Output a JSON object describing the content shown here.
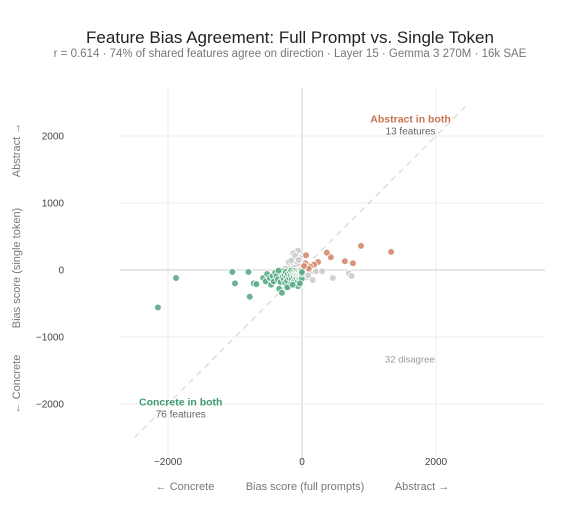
{
  "chart_data": {
    "type": "scatter",
    "title": "Feature Bias Agreement: Full Prompt vs. Single Token",
    "subtitle": "r = 0.614 · 74% of shared features agree on direction · Layer 15 · Gemma 3 270M · 16k SAE",
    "xlabel": "Bias score (full prompts)",
    "ylabel": "Bias score (single token)",
    "x_left_label": "← Concrete",
    "x_right_label": "Abstract →",
    "y_top_label": "Abstract →",
    "y_bottom_label": "← Concrete",
    "xlim": [
      -2500,
      2500
    ],
    "ylim": [
      -2500,
      2500
    ],
    "xticks": [
      -2000,
      0,
      2000
    ],
    "yticks": [
      -2000,
      -1000,
      0,
      1000,
      2000
    ],
    "tick_labels_x": [
      "−2000",
      "0",
      "2000"
    ],
    "tick_labels_y": [
      "−2000",
      "−1000",
      "0",
      "1000",
      "2000"
    ],
    "grid": true,
    "colors": {
      "abstract": "#d4896a",
      "concrete": "#5aab86",
      "disagree": "#cccccc",
      "abstract_text": "#c8724f",
      "concrete_text": "#3f9a70"
    },
    "annotations": {
      "abstract_title": "Abstract in both",
      "abstract_count": "13 features",
      "concrete_title": "Concrete in both",
      "concrete_count": "76 features",
      "disagree": "32 disagree"
    },
    "series": [
      {
        "key": "abstract",
        "points": [
          [
            1330,
            270
          ],
          [
            880,
            360
          ],
          [
            760,
            100
          ],
          [
            640,
            130
          ],
          [
            430,
            190
          ],
          [
            370,
            260
          ],
          [
            240,
            120
          ],
          [
            180,
            80
          ],
          [
            120,
            50
          ],
          [
            60,
            220
          ],
          [
            50,
            100
          ],
          [
            100,
            20
          ],
          [
            30,
            60
          ]
        ]
      },
      {
        "key": "concrete",
        "points": [
          [
            -2150,
            -560
          ],
          [
            -1880,
            -120
          ],
          [
            -1040,
            -30
          ],
          [
            -1000,
            -200
          ],
          [
            -800,
            -30
          ],
          [
            -780,
            -400
          ],
          [
            -720,
            -200
          ],
          [
            -680,
            -210
          ],
          [
            -580,
            -120
          ],
          [
            -540,
            -170
          ],
          [
            -520,
            -60
          ],
          [
            -480,
            -120
          ],
          [
            -460,
            -220
          ],
          [
            -440,
            -90
          ],
          [
            -420,
            -170
          ],
          [
            -400,
            -40
          ],
          [
            -380,
            -90
          ],
          [
            -360,
            -140
          ],
          [
            -340,
            -280
          ],
          [
            -320,
            -180
          ],
          [
            -300,
            -60
          ],
          [
            -290,
            -110
          ],
          [
            -280,
            -20
          ],
          [
            -270,
            -140
          ],
          [
            -260,
            -70
          ],
          [
            -250,
            -190
          ],
          [
            -240,
            -30
          ],
          [
            -230,
            -100
          ],
          [
            -220,
            -160
          ],
          [
            -210,
            -60
          ],
          [
            -200,
            -250
          ],
          [
            -190,
            -120
          ],
          [
            -180,
            -40
          ],
          [
            -170,
            -80
          ],
          [
            -160,
            -10
          ],
          [
            -160,
            -200
          ],
          [
            -150,
            -130
          ],
          [
            -140,
            -60
          ],
          [
            -130,
            -30
          ],
          [
            -120,
            -170
          ],
          [
            -120,
            -100
          ],
          [
            -110,
            -50
          ],
          [
            -100,
            -10
          ],
          [
            -100,
            -140
          ],
          [
            -90,
            -80
          ],
          [
            -85,
            -30
          ],
          [
            -80,
            -120
          ],
          [
            -75,
            -60
          ],
          [
            -70,
            -15
          ],
          [
            -65,
            -180
          ],
          [
            -60,
            -90
          ],
          [
            -55,
            -40
          ],
          [
            -50,
            -110
          ],
          [
            -45,
            -20
          ],
          [
            -40,
            -70
          ],
          [
            -35,
            -130
          ],
          [
            -30,
            -50
          ],
          [
            -25,
            -10
          ],
          [
            -20,
            -90
          ],
          [
            -18,
            -160
          ],
          [
            -15,
            -30
          ],
          [
            -12,
            -60
          ],
          [
            -10,
            -110
          ],
          [
            -8,
            -20
          ],
          [
            -6,
            -45
          ],
          [
            -5,
            -80
          ],
          [
            -4,
            -130
          ],
          [
            -3,
            -10
          ],
          [
            -2,
            -55
          ],
          [
            -1,
            -30
          ],
          [
            -300,
            -340
          ],
          [
            -220,
            -260
          ],
          [
            -60,
            -240
          ],
          [
            -140,
            -220
          ],
          [
            -350,
            -10
          ],
          [
            -30,
            -200
          ]
        ]
      },
      {
        "key": "disagree",
        "points": [
          [
            -60,
            290
          ],
          [
            -130,
            250
          ],
          [
            -90,
            130
          ],
          [
            -180,
            90
          ],
          [
            -150,
            50
          ],
          [
            -120,
            170
          ],
          [
            -60,
            60
          ],
          [
            -40,
            110
          ],
          [
            -220,
            40
          ],
          [
            -200,
            120
          ],
          [
            -80,
            20
          ],
          [
            -30,
            180
          ],
          [
            -10,
            80
          ],
          [
            -250,
            20
          ],
          [
            -100,
            210
          ],
          [
            -20,
            40
          ],
          [
            -160,
            140
          ],
          [
            -70,
            90
          ],
          [
            -110,
            30
          ],
          [
            -50,
            150
          ],
          [
            20,
            -60
          ],
          [
            60,
            -110
          ],
          [
            120,
            -40
          ],
          [
            210,
            -20
          ],
          [
            300,
            -20
          ],
          [
            460,
            -120
          ],
          [
            700,
            -50
          ],
          [
            740,
            -90
          ],
          [
            40,
            -30
          ],
          [
            90,
            -80
          ],
          [
            160,
            -150
          ],
          [
            10,
            -20
          ]
        ]
      }
    ]
  }
}
